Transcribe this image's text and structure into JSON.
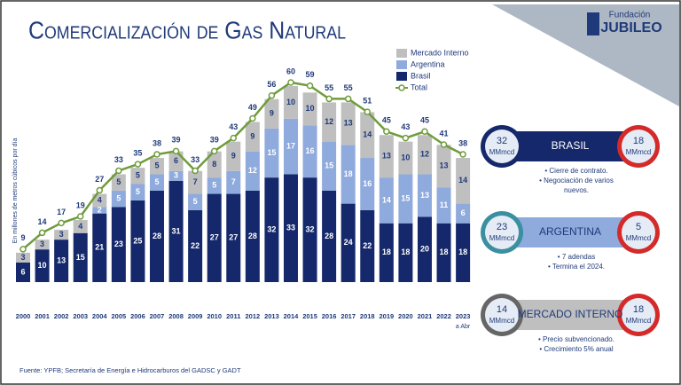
{
  "header": {
    "title": "Comercialización de Gas Natural",
    "logo_small": "Fundación",
    "logo_big": "JUBILEO"
  },
  "chart_data": {
    "type": "bar",
    "stacked": true,
    "y_label": "En millones de metros cúbicos por día",
    "categories": [
      "2000",
      "2001",
      "2002",
      "2003",
      "2004",
      "2005",
      "2006",
      "2007",
      "2008",
      "2009",
      "2010",
      "2011",
      "2012",
      "2013",
      "2014",
      "2015",
      "2016",
      "2017",
      "2018",
      "2019",
      "2020",
      "2021",
      "2022",
      "2023"
    ],
    "category_note": "a Abr",
    "series": [
      {
        "name": "Brasil",
        "color": "#14286b",
        "values": [
          6,
          10,
          13,
          15,
          21,
          23,
          25,
          28,
          31,
          22,
          27,
          27,
          28,
          32,
          33,
          32,
          28,
          24,
          22,
          18,
          18,
          20,
          18,
          18
        ]
      },
      {
        "name": "Argentina",
        "color": "#8faadc",
        "values": [
          null,
          null,
          null,
          null,
          2,
          5,
          5,
          5,
          3,
          5,
          5,
          7,
          12,
          15,
          17,
          16,
          15,
          18,
          16,
          14,
          15,
          13,
          11,
          6
        ]
      },
      {
        "name": "Mercado Interno",
        "color": "#bfbfbf",
        "values": [
          3,
          3,
          3,
          4,
          4,
          5,
          5,
          5,
          6,
          7,
          8,
          9,
          9,
          9,
          10,
          10,
          12,
          13,
          14,
          13,
          10,
          12,
          13,
          14
        ]
      },
      {
        "name": "Total",
        "color": "#6f9c3d",
        "kind": "line",
        "values": [
          9,
          14,
          17,
          19,
          27,
          33,
          35,
          38,
          39,
          33,
          39,
          43,
          49,
          56,
          60,
          59,
          55,
          55,
          51,
          45,
          43,
          45,
          41,
          38
        ]
      }
    ],
    "legend_order": [
      2,
      1,
      0,
      3
    ]
  },
  "panels": [
    {
      "name": "Brasil",
      "left": {
        "value": "32",
        "unit": "MMmcd"
      },
      "right": {
        "value": "18",
        "unit": "MMmcd"
      },
      "bullets": [
        "• Cierre de contrato.",
        "• Negociación de varios",
        "nuevos."
      ]
    },
    {
      "name": "Argentina",
      "left": {
        "value": "23",
        "unit": "MMmcd"
      },
      "right": {
        "value": "5",
        "unit": "MMmcd"
      },
      "bullets": [
        "• 7 adendas",
        "• Termina el 2024."
      ]
    },
    {
      "name": "Mercado Interno",
      "left": {
        "value": "14",
        "unit": "MMmcd"
      },
      "right": {
        "value": "18",
        "unit": "MMmcd"
      },
      "bullets": [
        "• Precio subvencionado.",
        "• Crecimiento 5% anual"
      ]
    }
  ],
  "footer": {
    "source": "Fuente: YPFB; Secretaría de Energía e Hidrocarburos del GADSC y GADT"
  }
}
